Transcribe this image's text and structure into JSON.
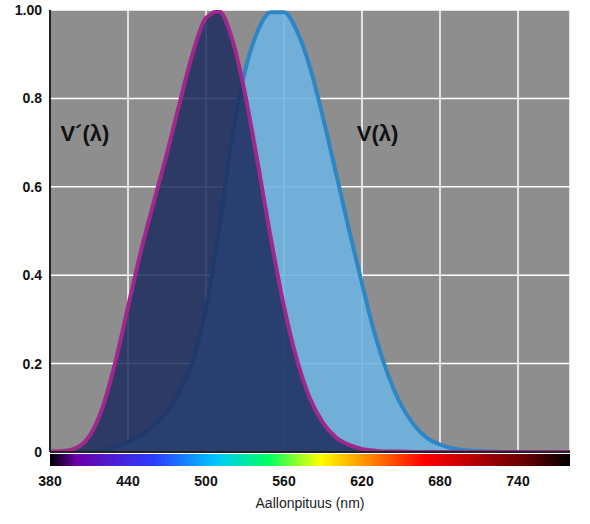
{
  "chart_data": {
    "type": "area",
    "x": [
      380,
      390,
      400,
      410,
      420,
      430,
      440,
      450,
      460,
      470,
      480,
      490,
      500,
      510,
      520,
      530,
      540,
      550,
      560,
      570,
      580,
      590,
      600,
      610,
      620,
      630,
      640,
      650,
      660,
      670,
      680,
      690,
      700,
      710,
      720,
      730,
      740,
      750,
      760,
      770,
      780
    ],
    "series": [
      {
        "name": "V´(λ)",
        "color": "#a0288c",
        "values": [
          0.001,
          0.002,
          0.009,
          0.035,
          0.097,
          0.2,
          0.328,
          0.455,
          0.567,
          0.676,
          0.793,
          0.904,
          0.982,
          0.997,
          0.935,
          0.811,
          0.65,
          0.481,
          0.329,
          0.208,
          0.121,
          0.066,
          0.033,
          0.016,
          0.007,
          0.003,
          0.001,
          0.001,
          0,
          0,
          0,
          0,
          0,
          0,
          0,
          0,
          0,
          0,
          0,
          0,
          0
        ]
      },
      {
        "name": "V(λ)",
        "color": "#2f86c4",
        "values": [
          0,
          0,
          0,
          0.001,
          0.004,
          0.012,
          0.023,
          0.038,
          0.06,
          0.091,
          0.139,
          0.208,
          0.323,
          0.503,
          0.71,
          0.862,
          0.954,
          0.995,
          0.995,
          0.952,
          0.87,
          0.757,
          0.631,
          0.503,
          0.381,
          0.265,
          0.175,
          0.107,
          0.061,
          0.032,
          0.017,
          0.008,
          0.004,
          0.002,
          0.001,
          0,
          0,
          0,
          0,
          0,
          0
        ]
      }
    ],
    "xlabel": "Aallonpituus (nm)",
    "xlim": [
      380,
      780
    ],
    "xticks": [
      380,
      440,
      500,
      560,
      620,
      680,
      740
    ],
    "ylim": [
      0,
      1
    ],
    "yticks": [
      0,
      0.2,
      0.4,
      0.6,
      0.8,
      {
        "value": 1,
        "label": "1.00"
      }
    ],
    "grid": true
  }
}
